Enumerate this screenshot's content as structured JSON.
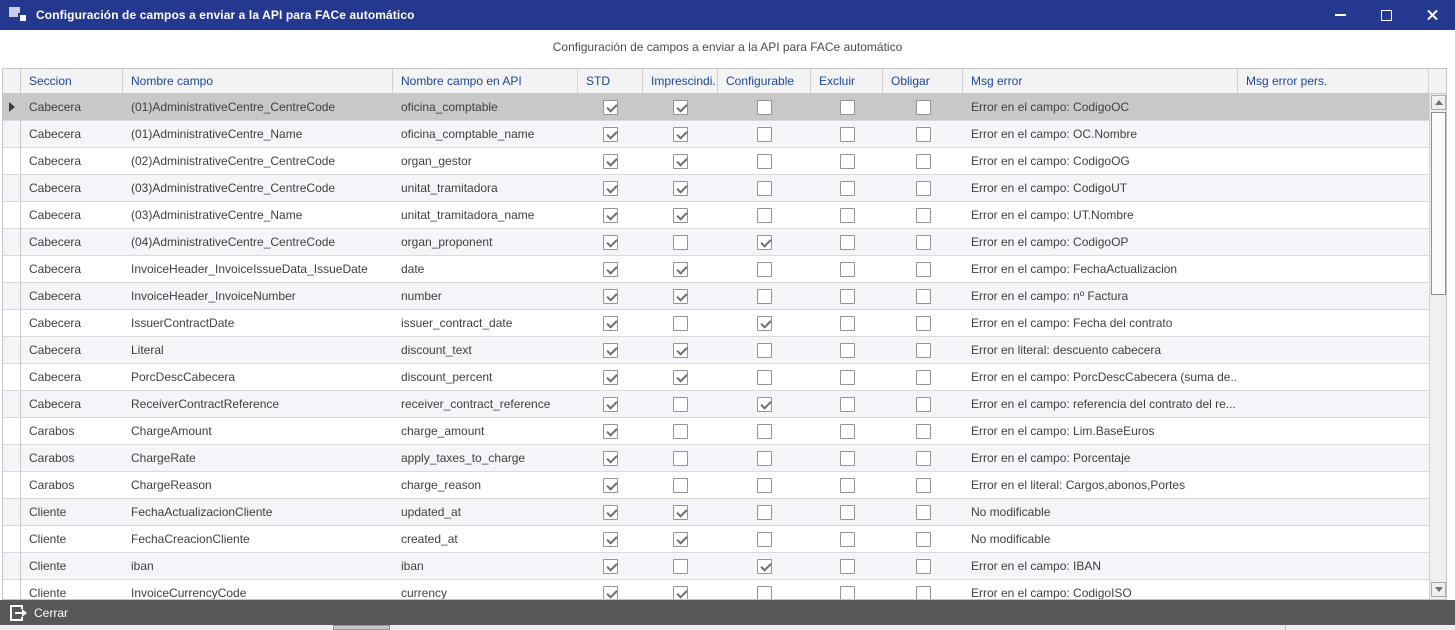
{
  "window": {
    "title": "Configuración de campos a enviar a la API para FACe automático"
  },
  "heading": "Configuración de campos a enviar a la API para FACe automático",
  "footer": {
    "close_label": "Cerrar"
  },
  "colors": {
    "titlebar": "#24388F",
    "header_text": "#1E4596",
    "footer_bar": "#58585A",
    "selected_row": "#C8C8C8",
    "alt_row": "#F4F5F8"
  },
  "grid": {
    "columns": {
      "seccion": "Seccion",
      "nombre": "Nombre campo",
      "api": "Nombre campo en API",
      "std": "STD",
      "imprescindible": "Imprescindi...",
      "configurable": "Configurable",
      "excluir": "Excluir",
      "obligar": "Obligar",
      "msg_error": "Msg error",
      "msg_error_pers": "Msg error pers."
    },
    "rows": [
      {
        "seccion": "Cabecera",
        "nombre": "(01)AdministrativeCentre_CentreCode",
        "api": "oficina_comptable",
        "std": true,
        "imprescindible": true,
        "configurable": false,
        "excluir": false,
        "obligar": false,
        "msg_error": "Error en el campo: CodigoOC",
        "msg_error_pers": "",
        "selected": true
      },
      {
        "seccion": "Cabecera",
        "nombre": "(01)AdministrativeCentre_Name",
        "api": "oficina_comptable_name",
        "std": true,
        "imprescindible": true,
        "configurable": false,
        "excluir": false,
        "obligar": false,
        "msg_error": "Error en el campo: OC.Nombre",
        "msg_error_pers": "",
        "selected": false
      },
      {
        "seccion": "Cabecera",
        "nombre": "(02)AdministrativeCentre_CentreCode",
        "api": "organ_gestor",
        "std": true,
        "imprescindible": true,
        "configurable": false,
        "excluir": false,
        "obligar": false,
        "msg_error": "Error en el campo: CodigoOG",
        "msg_error_pers": "",
        "selected": false
      },
      {
        "seccion": "Cabecera",
        "nombre": "(03)AdministrativeCentre_CentreCode",
        "api": "unitat_tramitadora",
        "std": true,
        "imprescindible": true,
        "configurable": false,
        "excluir": false,
        "obligar": false,
        "msg_error": "Error en el campo: CodigoUT",
        "msg_error_pers": "",
        "selected": false
      },
      {
        "seccion": "Cabecera",
        "nombre": "(03)AdministrativeCentre_Name",
        "api": "unitat_tramitadora_name",
        "std": true,
        "imprescindible": true,
        "configurable": false,
        "excluir": false,
        "obligar": false,
        "msg_error": "Error en el campo: UT.Nombre",
        "msg_error_pers": "",
        "selected": false
      },
      {
        "seccion": "Cabecera",
        "nombre": "(04)AdministrativeCentre_CentreCode",
        "api": "organ_proponent",
        "std": true,
        "imprescindible": false,
        "configurable": true,
        "excluir": false,
        "obligar": false,
        "msg_error": "Error en el campo: CodigoOP",
        "msg_error_pers": "",
        "selected": false
      },
      {
        "seccion": "Cabecera",
        "nombre": "InvoiceHeader_InvoiceIssueData_IssueDate",
        "api": "date",
        "std": true,
        "imprescindible": true,
        "configurable": false,
        "excluir": false,
        "obligar": false,
        "msg_error": "Error en el campo: FechaActualizacion",
        "msg_error_pers": "",
        "selected": false
      },
      {
        "seccion": "Cabecera",
        "nombre": "InvoiceHeader_InvoiceNumber",
        "api": "number",
        "std": true,
        "imprescindible": true,
        "configurable": false,
        "excluir": false,
        "obligar": false,
        "msg_error": "Error en el campo: nº Factura",
        "msg_error_pers": "",
        "selected": false
      },
      {
        "seccion": "Cabecera",
        "nombre": "IssuerContractDate",
        "api": "issuer_contract_date",
        "std": true,
        "imprescindible": false,
        "configurable": true,
        "excluir": false,
        "obligar": false,
        "msg_error": "Error en el campo: Fecha del contrato",
        "msg_error_pers": "",
        "selected": false
      },
      {
        "seccion": "Cabecera",
        "nombre": "Literal",
        "api": "discount_text",
        "std": true,
        "imprescindible": true,
        "configurable": false,
        "excluir": false,
        "obligar": false,
        "msg_error": "Error en literal: descuento cabecera",
        "msg_error_pers": "",
        "selected": false
      },
      {
        "seccion": "Cabecera",
        "nombre": "PorcDescCabecera",
        "api": "discount_percent",
        "std": true,
        "imprescindible": true,
        "configurable": false,
        "excluir": false,
        "obligar": false,
        "msg_error": "Error en el campo: PorcDescCabecera (suma de...",
        "msg_error_pers": "",
        "selected": false
      },
      {
        "seccion": "Cabecera",
        "nombre": "ReceiverContractReference",
        "api": "receiver_contract_reference",
        "std": true,
        "imprescindible": false,
        "configurable": true,
        "excluir": false,
        "obligar": false,
        "msg_error": "Error en el campo: referencia del contrato del re...",
        "msg_error_pers": "",
        "selected": false
      },
      {
        "seccion": "Carabos",
        "nombre": "ChargeAmount",
        "api": "charge_amount",
        "std": true,
        "imprescindible": false,
        "configurable": false,
        "excluir": false,
        "obligar": false,
        "msg_error": "Error en el campo: Lim.BaseEuros",
        "msg_error_pers": "",
        "selected": false
      },
      {
        "seccion": "Carabos",
        "nombre": "ChargeRate",
        "api": "apply_taxes_to_charge",
        "std": true,
        "imprescindible": false,
        "configurable": false,
        "excluir": false,
        "obligar": false,
        "msg_error": "Error en el campo: Porcentaje",
        "msg_error_pers": "",
        "selected": false
      },
      {
        "seccion": "Carabos",
        "nombre": "ChargeReason",
        "api": "charge_reason",
        "std": true,
        "imprescindible": false,
        "configurable": false,
        "excluir": false,
        "obligar": false,
        "msg_error": "Error en el literal: Cargos,abonos,Portes",
        "msg_error_pers": "",
        "selected": false
      },
      {
        "seccion": "Cliente",
        "nombre": "FechaActualizacionCliente",
        "api": "updated_at",
        "std": true,
        "imprescindible": true,
        "configurable": false,
        "excluir": false,
        "obligar": false,
        "msg_error": "No modificable",
        "msg_error_pers": "",
        "selected": false
      },
      {
        "seccion": "Cliente",
        "nombre": "FechaCreacionCliente",
        "api": "created_at",
        "std": true,
        "imprescindible": true,
        "configurable": false,
        "excluir": false,
        "obligar": false,
        "msg_error": "No modificable",
        "msg_error_pers": "",
        "selected": false
      },
      {
        "seccion": "Cliente",
        "nombre": "iban",
        "api": "iban",
        "std": true,
        "imprescindible": false,
        "configurable": true,
        "excluir": false,
        "obligar": false,
        "msg_error": "Error en el campo: IBAN",
        "msg_error_pers": "",
        "selected": false
      },
      {
        "seccion": "Cliente",
        "nombre": "InvoiceCurrencyCode",
        "api": "currency",
        "std": true,
        "imprescindible": true,
        "configurable": false,
        "excluir": false,
        "obligar": false,
        "msg_error": "Error en el campo: CodigoISO",
        "msg_error_pers": "",
        "selected": false
      }
    ]
  }
}
